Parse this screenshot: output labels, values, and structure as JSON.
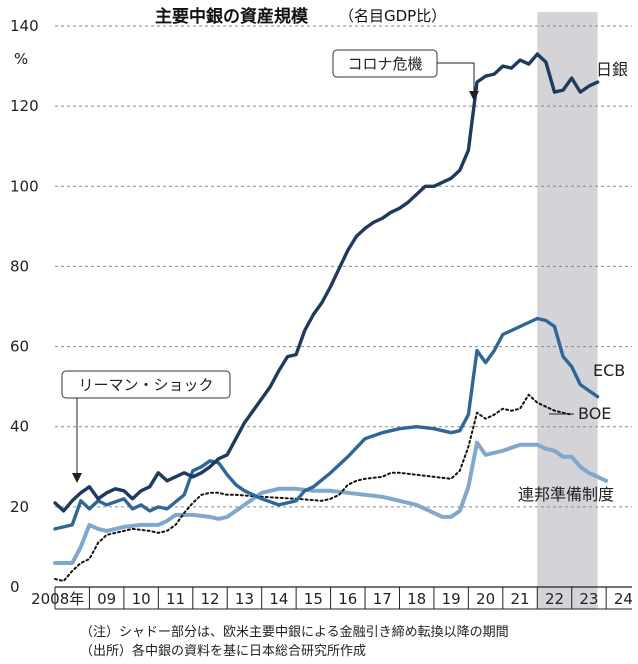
{
  "chart_data": {
    "type": "line",
    "title": "主要中銀の資産規模",
    "subtitle": "（名目GDP比）",
    "ylabel": "%",
    "ylim": [
      0,
      140
    ],
    "yticks": [
      "0",
      "20",
      "40",
      "60",
      "80",
      "100",
      "120",
      "140"
    ],
    "xlim": [
      2008,
      2024.75
    ],
    "xticks": [
      "2008年",
      "09",
      "10",
      "11",
      "12",
      "13",
      "14",
      "15",
      "16",
      "17",
      "18",
      "19",
      "20",
      "21",
      "22",
      "23",
      "24"
    ],
    "grid": true,
    "shaded_range": [
      2022.0,
      2023.75
    ],
    "annotations": [
      {
        "text": "コロナ危機",
        "x": 2020.0,
        "y": 121
      },
      {
        "text": "リーマン・ショック",
        "x": 2008.6,
        "y": 23
      }
    ],
    "notes": [
      "（注）シャドー部分は、欧米主要中銀による金融引き締め転換以降の期間",
      "（出所）各中銀の資料を基に日本総合研究所作成"
    ],
    "series": [
      {
        "name": "日銀",
        "color": "#1f3a5f",
        "style": "solid",
        "points": [
          [
            2008.0,
            21
          ],
          [
            2008.25,
            19
          ],
          [
            2008.5,
            21.5
          ],
          [
            2008.75,
            23.5
          ],
          [
            2009.0,
            25
          ],
          [
            2009.25,
            22
          ],
          [
            2009.5,
            23.5
          ],
          [
            2009.75,
            24.5
          ],
          [
            2010.0,
            24
          ],
          [
            2010.25,
            22
          ],
          [
            2010.5,
            24
          ],
          [
            2010.75,
            25
          ],
          [
            2011.0,
            28.5
          ],
          [
            2011.25,
            26.5
          ],
          [
            2011.5,
            27.5
          ],
          [
            2011.75,
            28.5
          ],
          [
            2012.0,
            27.5
          ],
          [
            2012.25,
            28.5
          ],
          [
            2012.5,
            30
          ],
          [
            2012.75,
            32
          ],
          [
            2013.0,
            33
          ],
          [
            2013.25,
            37
          ],
          [
            2013.5,
            41
          ],
          [
            2013.75,
            44
          ],
          [
            2014.0,
            47
          ],
          [
            2014.25,
            50
          ],
          [
            2014.5,
            54
          ],
          [
            2014.75,
            57.5
          ],
          [
            2015.0,
            58
          ],
          [
            2015.25,
            64
          ],
          [
            2015.5,
            68
          ],
          [
            2015.75,
            71
          ],
          [
            2016.0,
            75
          ],
          [
            2016.25,
            79.5
          ],
          [
            2016.5,
            84
          ],
          [
            2016.75,
            87.5
          ],
          [
            2017.0,
            89.5
          ],
          [
            2017.25,
            91
          ],
          [
            2017.5,
            92
          ],
          [
            2017.75,
            93.5
          ],
          [
            2018.0,
            94.5
          ],
          [
            2018.25,
            96
          ],
          [
            2018.5,
            98
          ],
          [
            2018.75,
            100
          ],
          [
            2019.0,
            100
          ],
          [
            2019.25,
            101
          ],
          [
            2019.5,
            102
          ],
          [
            2019.75,
            104
          ],
          [
            2020.0,
            109
          ],
          [
            2020.25,
            126
          ],
          [
            2020.5,
            127.5
          ],
          [
            2020.75,
            128
          ],
          [
            2021.0,
            130
          ],
          [
            2021.25,
            129.5
          ],
          [
            2021.5,
            131.5
          ],
          [
            2021.75,
            130.5
          ],
          [
            2022.0,
            133
          ],
          [
            2022.25,
            131
          ],
          [
            2022.5,
            123.5
          ],
          [
            2022.75,
            124
          ],
          [
            2023.0,
            127
          ],
          [
            2023.25,
            123.5
          ],
          [
            2023.5,
            125
          ],
          [
            2023.75,
            126
          ]
        ]
      },
      {
        "name": "ECB",
        "color": "#2e6797",
        "style": "solid",
        "points": [
          [
            2008.0,
            14.5
          ],
          [
            2008.5,
            15.5
          ],
          [
            2008.75,
            21.5
          ],
          [
            2009.0,
            19.5
          ],
          [
            2009.25,
            21.5
          ],
          [
            2009.5,
            20.5
          ],
          [
            2010.0,
            22
          ],
          [
            2010.25,
            19.5
          ],
          [
            2010.5,
            20.5
          ],
          [
            2010.75,
            19
          ],
          [
            2011.0,
            20
          ],
          [
            2011.25,
            19.5
          ],
          [
            2011.75,
            23
          ],
          [
            2012.0,
            29
          ],
          [
            2012.25,
            30
          ],
          [
            2012.5,
            31.5
          ],
          [
            2012.75,
            31
          ],
          [
            2013.0,
            28
          ],
          [
            2013.25,
            25.5
          ],
          [
            2013.5,
            24
          ],
          [
            2014.0,
            22
          ],
          [
            2014.5,
            20.5
          ],
          [
            2015.0,
            21.5
          ],
          [
            2015.25,
            24
          ],
          [
            2015.5,
            25
          ],
          [
            2016.0,
            28.5
          ],
          [
            2016.5,
            32.5
          ],
          [
            2017.0,
            37
          ],
          [
            2017.5,
            38.5
          ],
          [
            2018.0,
            39.5
          ],
          [
            2018.5,
            40
          ],
          [
            2019.0,
            39.5
          ],
          [
            2019.5,
            38.5
          ],
          [
            2019.75,
            39
          ],
          [
            2020.0,
            43
          ],
          [
            2020.25,
            59
          ],
          [
            2020.5,
            56
          ],
          [
            2020.75,
            59
          ],
          [
            2021.0,
            63
          ],
          [
            2021.5,
            65
          ],
          [
            2021.75,
            66
          ],
          [
            2022.0,
            67
          ],
          [
            2022.25,
            66.5
          ],
          [
            2022.5,
            65
          ],
          [
            2022.75,
            57.5
          ],
          [
            2023.0,
            55
          ],
          [
            2023.25,
            50.5
          ],
          [
            2023.5,
            49
          ],
          [
            2023.75,
            47.5
          ]
        ]
      },
      {
        "name": "BOE",
        "color": "#111111",
        "style": "dotted",
        "points": [
          [
            2008.0,
            2
          ],
          [
            2008.25,
            1.5
          ],
          [
            2008.5,
            4
          ],
          [
            2008.75,
            6
          ],
          [
            2009.0,
            7
          ],
          [
            2009.25,
            11
          ],
          [
            2009.5,
            13
          ],
          [
            2010.0,
            14
          ],
          [
            2010.25,
            14.5
          ],
          [
            2010.75,
            14
          ],
          [
            2011.0,
            13.5
          ],
          [
            2011.25,
            14
          ],
          [
            2011.5,
            15.5
          ],
          [
            2011.75,
            18.5
          ],
          [
            2012.0,
            21
          ],
          [
            2012.25,
            23
          ],
          [
            2012.5,
            23.5
          ],
          [
            2012.75,
            23.5
          ],
          [
            2013.0,
            23
          ],
          [
            2013.25,
            23
          ],
          [
            2014.0,
            22.5
          ],
          [
            2015.0,
            22
          ],
          [
            2015.75,
            21.5
          ],
          [
            2016.0,
            22
          ],
          [
            2016.25,
            23
          ],
          [
            2016.5,
            25.5
          ],
          [
            2016.75,
            26.5
          ],
          [
            2017.0,
            27
          ],
          [
            2017.5,
            27.5
          ],
          [
            2017.75,
            28.5
          ],
          [
            2018.0,
            28.5
          ],
          [
            2018.5,
            28
          ],
          [
            2019.0,
            27.5
          ],
          [
            2019.5,
            27
          ],
          [
            2019.75,
            29
          ],
          [
            2020.0,
            35
          ],
          [
            2020.25,
            43.5
          ],
          [
            2020.5,
            42
          ],
          [
            2020.75,
            43
          ],
          [
            2021.0,
            44.5
          ],
          [
            2021.25,
            44
          ],
          [
            2021.5,
            44.5
          ],
          [
            2021.75,
            48
          ],
          [
            2022.0,
            46
          ],
          [
            2022.25,
            45
          ],
          [
            2022.5,
            44
          ],
          [
            2022.75,
            43.5
          ],
          [
            2023.0,
            43
          ]
        ]
      },
      {
        "name": "連邦準備制度",
        "color": "#7fa8cc",
        "style": "solid",
        "points": [
          [
            2008.0,
            6
          ],
          [
            2008.5,
            6
          ],
          [
            2008.75,
            10
          ],
          [
            2009.0,
            15.5
          ],
          [
            2009.25,
            14.5
          ],
          [
            2009.5,
            14
          ],
          [
            2010.0,
            15
          ],
          [
            2010.5,
            15.5
          ],
          [
            2011.0,
            15.5
          ],
          [
            2011.25,
            16.5
          ],
          [
            2011.5,
            18
          ],
          [
            2012.0,
            18
          ],
          [
            2012.5,
            17.5
          ],
          [
            2012.75,
            17
          ],
          [
            2013.0,
            17.5
          ],
          [
            2013.25,
            19
          ],
          [
            2013.75,
            22
          ],
          [
            2014.0,
            23.5
          ],
          [
            2014.5,
            24.5
          ],
          [
            2015.0,
            24.5
          ],
          [
            2015.5,
            24
          ],
          [
            2016.0,
            24
          ],
          [
            2016.5,
            23.5
          ],
          [
            2017.0,
            23
          ],
          [
            2017.5,
            22.5
          ],
          [
            2018.0,
            21.5
          ],
          [
            2018.5,
            20.5
          ],
          [
            2019.0,
            18.5
          ],
          [
            2019.25,
            17.5
          ],
          [
            2019.5,
            17.5
          ],
          [
            2019.75,
            19
          ],
          [
            2020.0,
            25
          ],
          [
            2020.25,
            36
          ],
          [
            2020.5,
            33
          ],
          [
            2021.0,
            34
          ],
          [
            2021.5,
            35.5
          ],
          [
            2022.0,
            35.5
          ],
          [
            2022.25,
            34.5
          ],
          [
            2022.5,
            34
          ],
          [
            2022.75,
            32.5
          ],
          [
            2023.0,
            32.5
          ],
          [
            2023.25,
            30
          ],
          [
            2023.5,
            28.5
          ],
          [
            2023.75,
            27.5
          ],
          [
            2024.0,
            26.5
          ]
        ]
      }
    ]
  }
}
